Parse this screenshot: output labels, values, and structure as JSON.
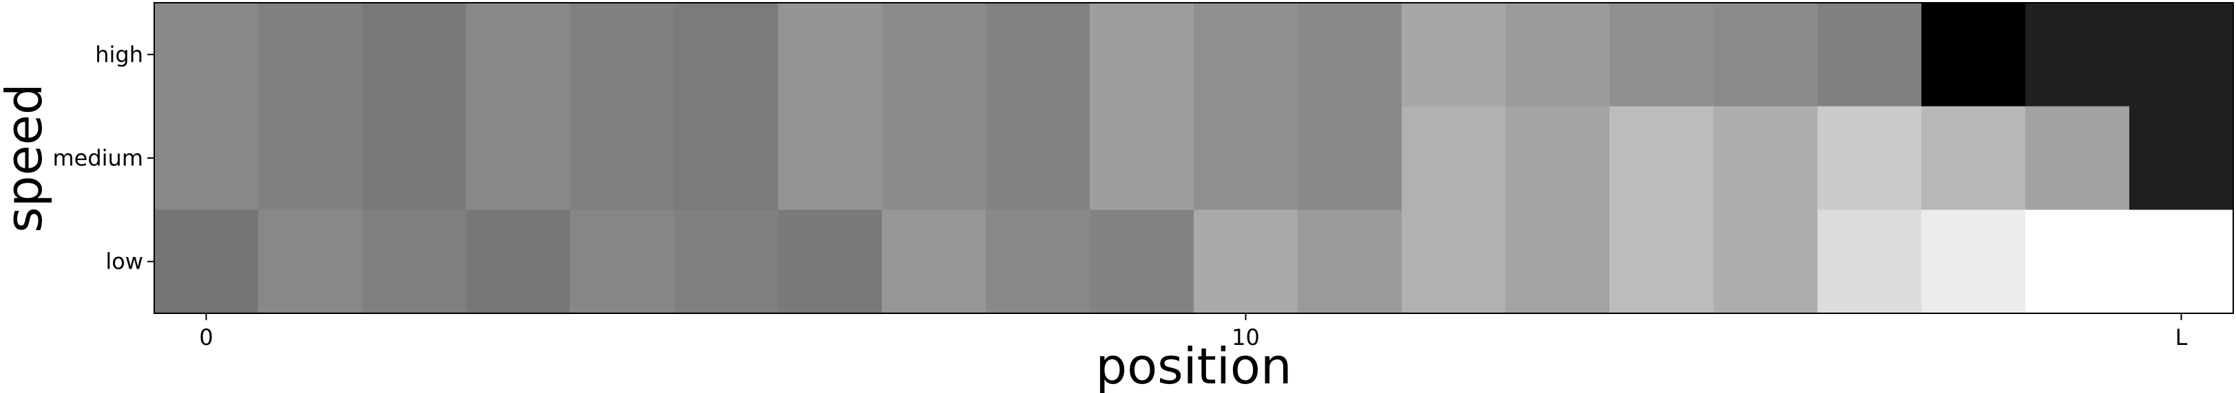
{
  "chart_data": {
    "type": "heatmap",
    "title": "",
    "xlabel": "position",
    "ylabel": "speed",
    "colormap": "gray",
    "rows": [
      "high",
      "medium",
      "low"
    ],
    "x_tick_labels": [
      "0",
      "10",
      "L"
    ],
    "x_tick_positions": [
      0,
      10,
      19
    ],
    "columns": 20,
    "values_gray_0_255": [
      [
        136,
        128,
        121,
        136,
        128,
        123,
        148,
        139,
        130,
        158,
        144,
        138,
        167,
        155,
        144,
        139,
        128,
        0,
        31,
        31
      ],
      [
        136,
        128,
        121,
        136,
        128,
        123,
        148,
        139,
        130,
        158,
        144,
        138,
        177,
        163,
        188,
        173,
        203,
        184,
        162,
        31
      ],
      [
        117,
        136,
        127,
        119,
        135,
        128,
        121,
        150,
        137,
        130,
        169,
        154,
        177,
        163,
        188,
        173,
        220,
        236,
        255,
        255
      ]
    ]
  }
}
